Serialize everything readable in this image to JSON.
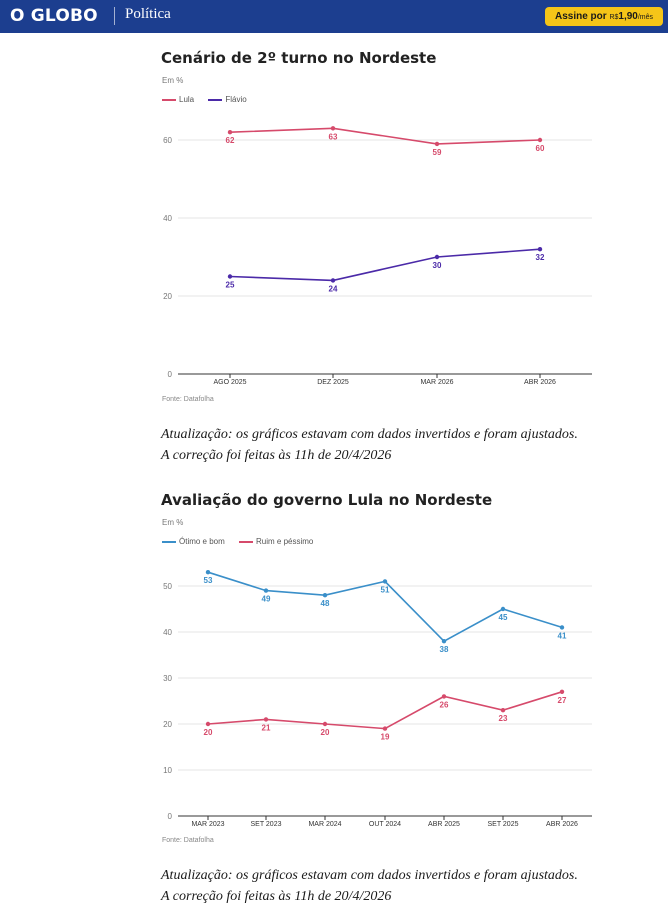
{
  "header": {
    "logo": "O GLOBO",
    "section": "Política",
    "subscribe": {
      "label": "Assine por",
      "currency": "R$",
      "price": "1,90",
      "period": "/mês"
    }
  },
  "charts": [
    {
      "title": "Cenário de 2º turno no Nordeste",
      "unit": "Em %",
      "source": "Fonte: Datafolha",
      "note_line1": "Atualização: os gráficos estavam com dados invertidos e foram ajustados.",
      "note_line2": "A correção foi feitas às 11h de 20/4/2026"
    },
    {
      "title": "Avaliação do governo Lula no Nordeste",
      "unit": "Em %",
      "source": "Fonte: Datafolha",
      "note_line1": "Atualização: os gráficos estavam com dados invertidos e foram ajustados.",
      "note_line2": "A correção foi feitas às 11h de 20/4/2026"
    }
  ],
  "chart_data": [
    {
      "type": "line",
      "title": "Cenário de 2º turno no Nordeste",
      "ylabel": "Em %",
      "x": [
        "AGO 2025",
        "DEZ 2025",
        "MAR 2026",
        "ABR 2026"
      ],
      "yticks": [
        0,
        20,
        40,
        60
      ],
      "ylim": [
        0,
        60
      ],
      "grid": true,
      "legend": "top-left",
      "series": [
        {
          "name": "Lula",
          "color": "#d64a6b",
          "values": [
            62,
            63,
            59,
            60
          ]
        },
        {
          "name": "Flávio",
          "color": "#4b2aa8",
          "values": [
            25,
            24,
            30,
            32
          ]
        }
      ]
    },
    {
      "type": "line",
      "title": "Avaliação do governo Lula no Nordeste",
      "ylabel": "Em %",
      "x": [
        "MAR 2023",
        "SET 2023",
        "MAR 2024",
        "OUT 2024",
        "ABR 2025",
        "SET 2025",
        "ABR 2026"
      ],
      "yticks": [
        0,
        10,
        20,
        30,
        40,
        50
      ],
      "ylim": [
        0,
        50
      ],
      "grid": true,
      "legend": "top-left",
      "series": [
        {
          "name": "Ótimo e bom",
          "color": "#3a8fc9",
          "values": [
            53,
            49,
            48,
            51,
            38,
            45,
            41
          ]
        },
        {
          "name": "Ruim e péssimo",
          "color": "#d64a6b",
          "values": [
            20,
            21,
            20,
            19,
            26,
            23,
            27
          ]
        }
      ]
    }
  ]
}
